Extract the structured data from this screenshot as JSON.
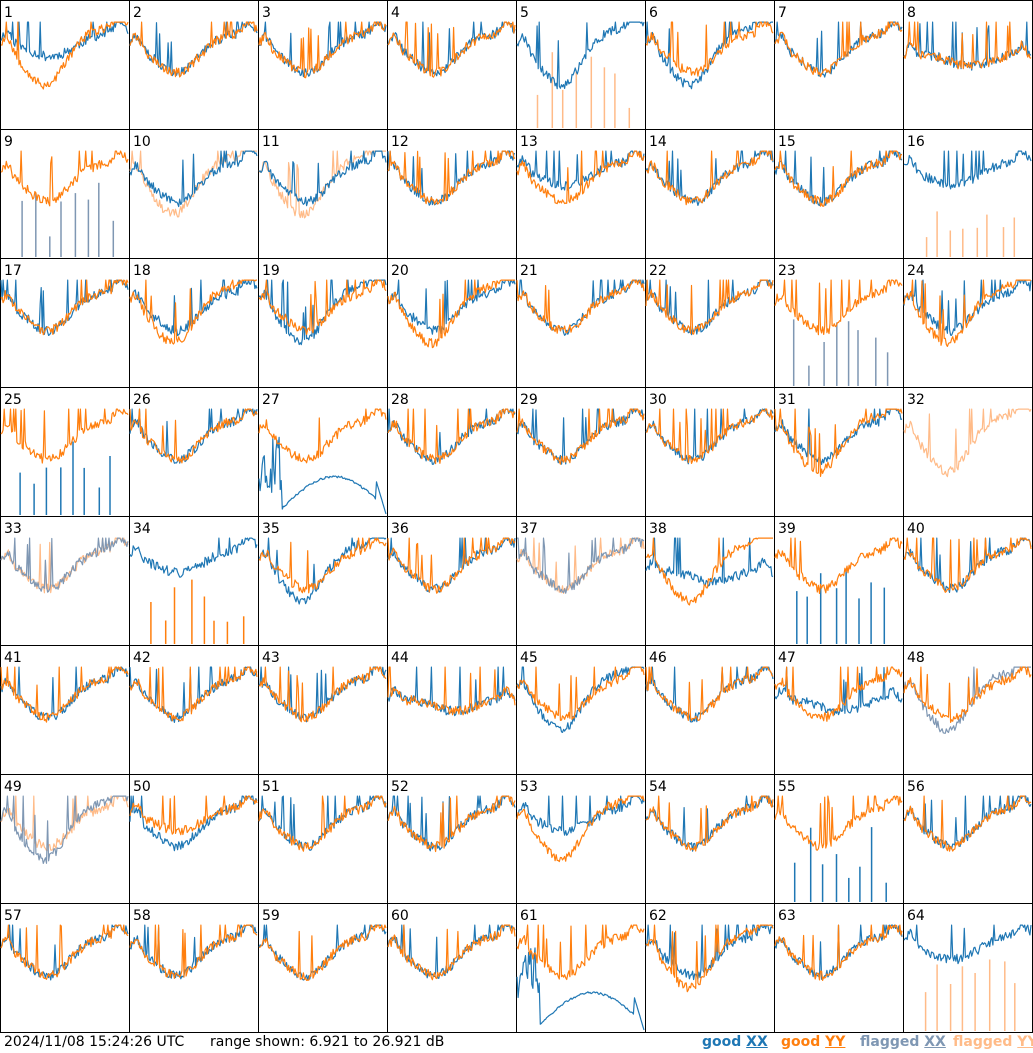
{
  "chart_data": {
    "type": "line",
    "layout": "8x8 grid of per-antenna spectra",
    "grid": false,
    "legend_placement": "bottom-right",
    "timestamp": "2024/11/08 15:24:26 UTC",
    "range_text": "range shown: 6.921 to 26.921 dB",
    "ylim": [
      6.921,
      26.921
    ],
    "yunit": "dB",
    "legend": [
      {
        "label": "good",
        "pol": "XX",
        "color": "#1f77b4"
      },
      {
        "label": "good",
        "pol": "YY",
        "color": "#ff7f0e"
      },
      {
        "label": "flagged",
        "pol": "XX",
        "color": "#7f97b3"
      },
      {
        "label": "flagged",
        "pol": "YY",
        "color": "#ffbb88"
      }
    ],
    "colors": {
      "good_xx": "#1f77b4",
      "good_yy": "#ff7f0e",
      "flagged_xx": "#7f97b3",
      "flagged_yy": "#ffbb88"
    },
    "panels": [
      {
        "id": "1",
        "xx": "good",
        "yy": "good",
        "xx_shape": "elevated",
        "yy_shape": "deep"
      },
      {
        "id": "2",
        "xx": "good",
        "yy": "good",
        "xx_shape": "normal",
        "yy_shape": "normal"
      },
      {
        "id": "3",
        "xx": "good",
        "yy": "good",
        "xx_shape": "normal",
        "yy_shape": "normal"
      },
      {
        "id": "4",
        "xx": "good",
        "yy": "good",
        "xx_shape": "normal",
        "yy_shape": "normal"
      },
      {
        "id": "5",
        "xx": "good",
        "yy": "flagged-spikes",
        "xx_shape": "deep",
        "yy_shape": "spikes"
      },
      {
        "id": "6",
        "xx": "good",
        "yy": "good",
        "xx_shape": "deep",
        "yy_shape": "normal"
      },
      {
        "id": "7",
        "xx": "good",
        "yy": "good",
        "xx_shape": "normal",
        "yy_shape": "normal"
      },
      {
        "id": "8",
        "xx": "good",
        "yy": "good",
        "xx_shape": "flat",
        "yy_shape": "flat"
      },
      {
        "id": "9",
        "xx": "flagged-spikes",
        "yy": "good",
        "xx_shape": "spikes",
        "yy_shape": "normal"
      },
      {
        "id": "10",
        "xx": "good",
        "yy": "flagged",
        "xx_shape": "normal",
        "yy_shape": "deep"
      },
      {
        "id": "11",
        "xx": "good",
        "yy": "flagged",
        "xx_shape": "normal",
        "yy_shape": "deep"
      },
      {
        "id": "12",
        "xx": "good",
        "yy": "good",
        "xx_shape": "normal",
        "yy_shape": "normal"
      },
      {
        "id": "13",
        "xx": "good",
        "yy": "good",
        "xx_shape": "elevated",
        "yy_shape": "normal"
      },
      {
        "id": "14",
        "xx": "good",
        "yy": "good",
        "xx_shape": "normal",
        "yy_shape": "normal"
      },
      {
        "id": "15",
        "xx": "good",
        "yy": "good",
        "xx_shape": "normal",
        "yy_shape": "normal"
      },
      {
        "id": "16",
        "xx": "good",
        "yy": "flagged-spikes",
        "xx_shape": "elevated",
        "yy_shape": "spikes"
      },
      {
        "id": "17",
        "xx": "good",
        "yy": "good",
        "xx_shape": "normal",
        "yy_shape": "normal"
      },
      {
        "id": "18",
        "xx": "good",
        "yy": "good",
        "xx_shape": "normal",
        "yy_shape": "deep"
      },
      {
        "id": "19",
        "xx": "good",
        "yy": "good",
        "xx_shape": "deep",
        "yy_shape": "normal"
      },
      {
        "id": "20",
        "xx": "good",
        "yy": "good",
        "xx_shape": "normal",
        "yy_shape": "deep"
      },
      {
        "id": "21",
        "xx": "good",
        "yy": "good",
        "xx_shape": "normal",
        "yy_shape": "normal"
      },
      {
        "id": "22",
        "xx": "good",
        "yy": "good",
        "xx_shape": "normal",
        "yy_shape": "normal"
      },
      {
        "id": "23",
        "xx": "flagged-spikes",
        "yy": "good",
        "xx_shape": "spikes",
        "yy_shape": "normal"
      },
      {
        "id": "24",
        "xx": "good",
        "yy": "good",
        "xx_shape": "normal",
        "yy_shape": "deep"
      },
      {
        "id": "25",
        "xx": "good-spikes",
        "yy": "good",
        "xx_shape": "spikes",
        "yy_shape": "normal"
      },
      {
        "id": "26",
        "xx": "good",
        "yy": "good",
        "xx_shape": "normal",
        "yy_shape": "normal"
      },
      {
        "id": "27",
        "xx": "good-broken",
        "yy": "good",
        "xx_shape": "broken",
        "yy_shape": "normal"
      },
      {
        "id": "28",
        "xx": "good",
        "yy": "good",
        "xx_shape": "normal",
        "yy_shape": "normal"
      },
      {
        "id": "29",
        "xx": "good",
        "yy": "good",
        "xx_shape": "normal",
        "yy_shape": "normal"
      },
      {
        "id": "30",
        "xx": "good",
        "yy": "good",
        "xx_shape": "normal",
        "yy_shape": "normal"
      },
      {
        "id": "31",
        "xx": "good",
        "yy": "good",
        "xx_shape": "normal",
        "yy_shape": "deep"
      },
      {
        "id": "32",
        "xx": "none",
        "yy": "flagged",
        "xx_shape": "none",
        "yy_shape": "deep"
      },
      {
        "id": "33",
        "xx": "flagged",
        "yy": "flagged",
        "xx_shape": "normal",
        "yy_shape": "normal"
      },
      {
        "id": "34",
        "xx": "good",
        "yy": "good-spikes",
        "xx_shape": "elevated",
        "yy_shape": "spikes"
      },
      {
        "id": "35",
        "xx": "good",
        "yy": "good",
        "xx_shape": "deep",
        "yy_shape": "normal"
      },
      {
        "id": "36",
        "xx": "good",
        "yy": "good",
        "xx_shape": "normal",
        "yy_shape": "normal"
      },
      {
        "id": "37",
        "xx": "flagged",
        "yy": "flagged",
        "xx_shape": "normal",
        "yy_shape": "normal"
      },
      {
        "id": "38",
        "xx": "good",
        "yy": "good",
        "xx_shape": "flat",
        "yy_shape": "deep"
      },
      {
        "id": "39",
        "xx": "good-spikes",
        "yy": "good",
        "xx_shape": "spikes",
        "yy_shape": "normal"
      },
      {
        "id": "40",
        "xx": "good",
        "yy": "good",
        "xx_shape": "normal",
        "yy_shape": "normal"
      },
      {
        "id": "41",
        "xx": "good",
        "yy": "good",
        "xx_shape": "normal",
        "yy_shape": "normal"
      },
      {
        "id": "42",
        "xx": "good",
        "yy": "good",
        "xx_shape": "normal",
        "yy_shape": "normal"
      },
      {
        "id": "43",
        "xx": "good",
        "yy": "good",
        "xx_shape": "normal",
        "yy_shape": "normal"
      },
      {
        "id": "44",
        "xx": "good",
        "yy": "good",
        "xx_shape": "flat",
        "yy_shape": "flat"
      },
      {
        "id": "45",
        "xx": "good",
        "yy": "good",
        "xx_shape": "deep",
        "yy_shape": "normal"
      },
      {
        "id": "46",
        "xx": "good",
        "yy": "good",
        "xx_shape": "normal",
        "yy_shape": "normal"
      },
      {
        "id": "47",
        "xx": "good",
        "yy": "good",
        "xx_shape": "flat",
        "yy_shape": "normal"
      },
      {
        "id": "48",
        "xx": "flagged",
        "yy": "good",
        "xx_shape": "deep",
        "yy_shape": "normal"
      },
      {
        "id": "49",
        "xx": "flagged",
        "yy": "flagged",
        "xx_shape": "deep",
        "yy_shape": "normal"
      },
      {
        "id": "50",
        "xx": "good",
        "yy": "good",
        "xx_shape": "normal",
        "yy_shape": "elevated"
      },
      {
        "id": "51",
        "xx": "good",
        "yy": "good",
        "xx_shape": "normal",
        "yy_shape": "normal"
      },
      {
        "id": "52",
        "xx": "good",
        "yy": "good",
        "xx_shape": "normal",
        "yy_shape": "normal"
      },
      {
        "id": "53",
        "xx": "good",
        "yy": "good",
        "xx_shape": "elevated",
        "yy_shape": "deep"
      },
      {
        "id": "54",
        "xx": "good",
        "yy": "good",
        "xx_shape": "normal",
        "yy_shape": "normal"
      },
      {
        "id": "55",
        "xx": "good-spikes",
        "yy": "good",
        "xx_shape": "spikes",
        "yy_shape": "normal"
      },
      {
        "id": "56",
        "xx": "good",
        "yy": "good",
        "xx_shape": "normal",
        "yy_shape": "normal"
      },
      {
        "id": "57",
        "xx": "good",
        "yy": "good",
        "xx_shape": "normal",
        "yy_shape": "normal"
      },
      {
        "id": "58",
        "xx": "good",
        "yy": "good",
        "xx_shape": "normal",
        "yy_shape": "normal"
      },
      {
        "id": "59",
        "xx": "good",
        "yy": "good",
        "xx_shape": "normal",
        "yy_shape": "normal"
      },
      {
        "id": "60",
        "xx": "good",
        "yy": "good",
        "xx_shape": "normal",
        "yy_shape": "normal"
      },
      {
        "id": "61",
        "xx": "good-broken",
        "yy": "good",
        "xx_shape": "broken",
        "yy_shape": "normal"
      },
      {
        "id": "62",
        "xx": "good",
        "yy": "good",
        "xx_shape": "normal",
        "yy_shape": "deep"
      },
      {
        "id": "63",
        "xx": "good",
        "yy": "good",
        "xx_shape": "normal",
        "yy_shape": "normal"
      },
      {
        "id": "64",
        "xx": "good",
        "yy": "flagged-spikes",
        "xx_shape": "elevated",
        "yy_shape": "spikes"
      }
    ]
  }
}
